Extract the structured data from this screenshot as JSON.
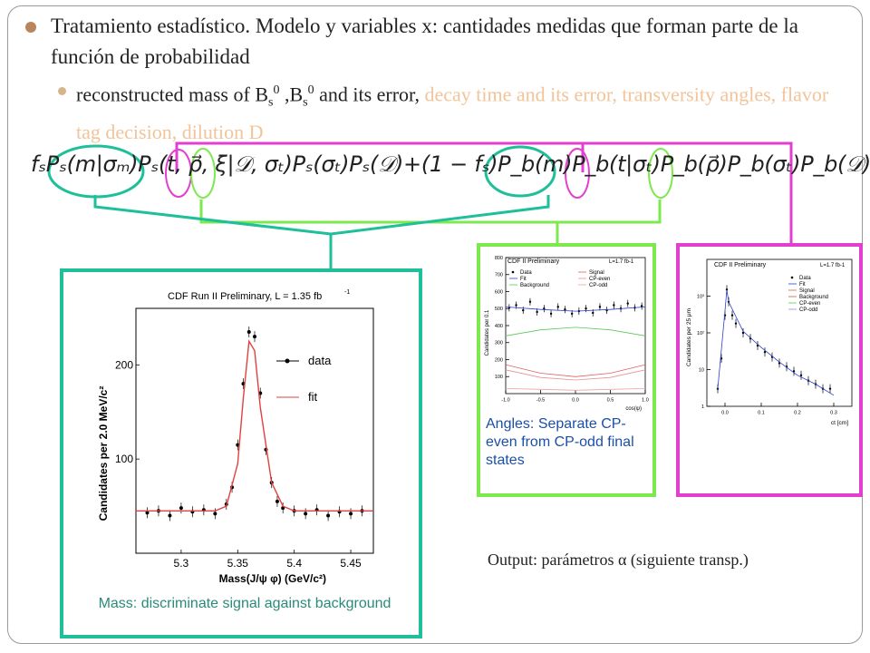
{
  "slide": {
    "bullet1_text": "Tratamiento estadístico. Modelo y variables x: cantidades medidas que forman parte de la función de probabilidad",
    "bullet2_black": "reconstructed mass of B",
    "bullet2_sub1": "s",
    "bullet2_sup1": "0",
    "bullet2_mid": " ,B",
    "bullet2_sub2": "s",
    "bullet2_sup2": "0",
    "bullet2_rest": " and its error, ",
    "bullet2_orange": "decay time and its error, transversity angles, flavor tag decision, dilution D",
    "formula": "fₛPₛ(m|σₘ)Pₛ(t, ρ⃗, ξ|𝒟, σₜ)Pₛ(σₜ)Pₛ(𝒟)+(1 − fₛ)P_b(m)P_b(t|σₜ)P_b(ρ⃗)P_b(σₜ)P_b(𝒟)",
    "output_text": "Output: parámetros α (siguiente transp.)"
  },
  "mass_panel": {
    "caption": "Mass: discriminate signal against background",
    "plot_title": "CDF Run II Preliminary, L = 1.35 fb",
    "plot_title_sup": "-1",
    "ylabel": "Candidates per 2.0 MeV/c²",
    "xlabel": "Mass(J/ψ φ)   (GeV/c²)",
    "legend_data": "data",
    "legend_fit": "fit",
    "border_color": "#1fbf9a",
    "chart_data": {
      "type": "line",
      "title": "CDF Run II Preliminary, L = 1.35 fb-1",
      "xlabel": "Mass(J/ψ φ) (GeV/c²)",
      "ylabel": "Candidates per 2.0 MeV/c²",
      "xlim": [
        5.26,
        5.47
      ],
      "ylim": [
        0,
        260
      ],
      "x_ticks": [
        "5.3",
        "5.35",
        "5.4",
        "5.45"
      ],
      "y_ticks": [
        "100",
        "200"
      ],
      "series": [
        {
          "name": "data",
          "x": [
            5.27,
            5.28,
            5.29,
            5.3,
            5.31,
            5.32,
            5.33,
            5.34,
            5.345,
            5.35,
            5.355,
            5.36,
            5.365,
            5.37,
            5.375,
            5.38,
            5.385,
            5.39,
            5.4,
            5.41,
            5.42,
            5.43,
            5.44,
            5.45,
            5.46
          ],
          "y": [
            43,
            45,
            40,
            48,
            44,
            46,
            42,
            52,
            70,
            115,
            180,
            235,
            230,
            170,
            110,
            75,
            55,
            48,
            45,
            42,
            46,
            40,
            44,
            42,
            45
          ]
        },
        {
          "name": "fit",
          "x": [
            5.26,
            5.3,
            5.33,
            5.34,
            5.35,
            5.355,
            5.36,
            5.365,
            5.37,
            5.38,
            5.39,
            5.4,
            5.44,
            5.47
          ],
          "y": [
            45,
            45,
            45,
            50,
            95,
            165,
            225,
            215,
            155,
            75,
            50,
            45,
            45,
            45
          ]
        }
      ]
    }
  },
  "angles_panel": {
    "caption": "Angles: Separate CP-even from  CP-odd final states",
    "plot_title": "CDF II Preliminary",
    "lumi": "L=1.7 fb-1",
    "ylabel": "Candidates per 0.1",
    "xlabel": "cos(ψ)",
    "legend": [
      "Data",
      "Fit",
      "Background",
      "Signal",
      "CP-even",
      "CP-odd"
    ],
    "border_color": "#7ee84f",
    "chart_data": {
      "type": "line",
      "title": "CDF II Preliminary",
      "xlabel": "cos(ψ)",
      "ylabel": "Candidates per 0.1",
      "xlim": [
        -1.0,
        1.0
      ],
      "ylim": [
        0,
        800
      ],
      "x_ticks": [
        "-1.0",
        "-0.5",
        "0.0",
        "0.5",
        "1.0"
      ],
      "y_ticks": [
        "100",
        "200",
        "300",
        "400",
        "500",
        "600",
        "700",
        "800"
      ],
      "series": [
        {
          "name": "Data",
          "x": [
            -0.95,
            -0.85,
            -0.75,
            -0.65,
            -0.55,
            -0.45,
            -0.35,
            -0.25,
            -0.15,
            -0.05,
            0.05,
            0.15,
            0.25,
            0.35,
            0.45,
            0.55,
            0.65,
            0.75,
            0.85,
            0.95
          ],
          "y": [
            505,
            520,
            490,
            540,
            480,
            500,
            470,
            510,
            495,
            470,
            485,
            500,
            475,
            510,
            490,
            520,
            500,
            530,
            505,
            515
          ]
        },
        {
          "name": "Fit",
          "x": [
            -1.0,
            -0.5,
            0.0,
            0.5,
            1.0
          ],
          "y": [
            510,
            495,
            485,
            495,
            510
          ]
        },
        {
          "name": "Background",
          "x": [
            -1.0,
            -0.5,
            0.0,
            0.5,
            1.0
          ],
          "y": [
            340,
            375,
            390,
            375,
            340
          ]
        },
        {
          "name": "Signal",
          "x": [
            -1.0,
            -0.5,
            0.0,
            0.5,
            1.0
          ],
          "y": [
            170,
            120,
            100,
            120,
            170
          ]
        },
        {
          "name": "CP-even",
          "x": [
            -1.0,
            -0.5,
            0.0,
            0.5,
            1.0
          ],
          "y": [
            140,
            95,
            80,
            95,
            140
          ]
        },
        {
          "name": "CP-odd",
          "x": [
            -1.0,
            -0.5,
            0.0,
            0.5,
            1.0
          ],
          "y": [
            30,
            25,
            20,
            25,
            30
          ]
        }
      ]
    }
  },
  "time_panel": {
    "plot_title": "CDF II Preliminary",
    "lumi": "L=1.7 fb-1",
    "ylabel": "Candidates per 25 μm",
    "xlabel": "ct [cm]",
    "legend": [
      "Data",
      "Fit",
      "Signal",
      "Background",
      "CP-even",
      "CP-odd"
    ],
    "border_color": "#e23fd0",
    "chart_data": {
      "type": "line",
      "title": "CDF II Preliminary",
      "xlabel": "ct [cm]",
      "ylabel": "Candidates per 25 μm",
      "xlim": [
        -0.05,
        0.35
      ],
      "ylim": [
        1,
        10000
      ],
      "log_y": true,
      "x_ticks": [
        "0.0",
        "0.1",
        "0.2",
        "0.3"
      ],
      "y_ticks": [
        "1",
        "10",
        "10²",
        "10³"
      ],
      "series": [
        {
          "name": "Data",
          "x": [
            -0.02,
            -0.01,
            0.0,
            0.005,
            0.01,
            0.02,
            0.03,
            0.05,
            0.07,
            0.09,
            0.11,
            0.13,
            0.15,
            0.17,
            0.19,
            0.21,
            0.23,
            0.25,
            0.27,
            0.29
          ],
          "y": [
            3,
            20,
            300,
            1500,
            700,
            300,
            180,
            100,
            70,
            45,
            30,
            22,
            15,
            12,
            9,
            7,
            5,
            4,
            3,
            3
          ]
        },
        {
          "name": "Fit",
          "x": [
            -0.02,
            0.0,
            0.005,
            0.01,
            0.05,
            0.1,
            0.15,
            0.2,
            0.25,
            0.3
          ],
          "y": [
            3,
            400,
            1500,
            700,
            110,
            40,
            16,
            7,
            4,
            2
          ]
        }
      ]
    }
  }
}
